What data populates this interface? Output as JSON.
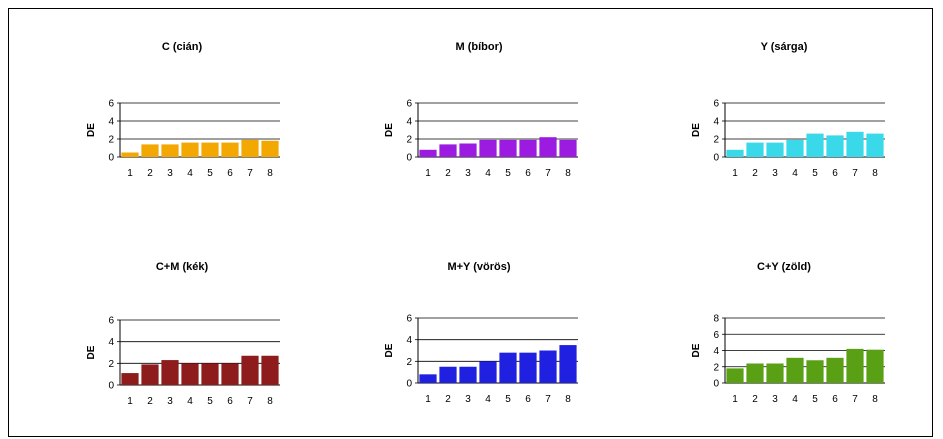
{
  "chart_data": [
    {
      "type": "bar",
      "title": "C (cián)",
      "ylabel": "DE",
      "categories": [
        "1",
        "2",
        "3",
        "4",
        "5",
        "6",
        "7",
        "8"
      ],
      "values": [
        0.5,
        1.4,
        1.4,
        1.6,
        1.6,
        1.6,
        1.9,
        1.8
      ],
      "ylim": [
        0,
        6
      ],
      "yticks": [
        "0",
        "2",
        "4",
        "6"
      ],
      "color": "#f2a800",
      "grid": true
    },
    {
      "type": "bar",
      "title": "M (bíbor)",
      "ylabel": "DE",
      "categories": [
        "1",
        "2",
        "3",
        "4",
        "5",
        "6",
        "7",
        "8"
      ],
      "values": [
        0.8,
        1.4,
        1.5,
        1.9,
        1.9,
        1.9,
        2.2,
        1.9
      ],
      "ylim": [
        0,
        6
      ],
      "yticks": [
        "0",
        "2",
        "4",
        "6"
      ],
      "color": "#9b1be0",
      "grid": true
    },
    {
      "type": "bar",
      "title": "Y (sárga)",
      "ylabel": "DE",
      "categories": [
        "1",
        "2",
        "3",
        "4",
        "5",
        "6",
        "7",
        "8"
      ],
      "values": [
        0.8,
        1.6,
        1.6,
        1.9,
        2.6,
        2.4,
        2.8,
        2.6
      ],
      "ylim": [
        0,
        6
      ],
      "yticks": [
        "0",
        "2",
        "4",
        "6"
      ],
      "color": "#3ad9ea",
      "grid": true
    },
    {
      "type": "bar",
      "title": "C+M (kék)",
      "ylabel": "DE",
      "categories": [
        "1",
        "2",
        "3",
        "4",
        "5",
        "6",
        "7",
        "8"
      ],
      "values": [
        1.1,
        1.9,
        2.3,
        2.0,
        2.0,
        2.0,
        2.7,
        2.7
      ],
      "ylim": [
        0,
        6
      ],
      "yticks": [
        "0",
        "2",
        "4",
        "6"
      ],
      "color": "#8e1c1c",
      "grid": true
    },
    {
      "type": "bar",
      "title": "M+Y (vörös)",
      "ylabel": "DE",
      "categories": [
        "1",
        "2",
        "3",
        "4",
        "5",
        "6",
        "7",
        "8"
      ],
      "values": [
        0.8,
        1.5,
        1.5,
        2.0,
        2.8,
        2.8,
        3.0,
        3.5
      ],
      "ylim": [
        0,
        6
      ],
      "yticks": [
        "0",
        "2",
        "4",
        "6"
      ],
      "color": "#2020e0",
      "grid": true
    },
    {
      "type": "bar",
      "title": "C+Y (zöld)",
      "ylabel": "DE",
      "categories": [
        "1",
        "2",
        "3",
        "4",
        "5",
        "6",
        "7",
        "8"
      ],
      "values": [
        1.8,
        2.4,
        2.4,
        3.1,
        2.8,
        3.1,
        4.2,
        4.1
      ],
      "ylim": [
        0,
        8
      ],
      "yticks": [
        "0",
        "2",
        "4",
        "6",
        "8"
      ],
      "color": "#5aa014",
      "grid": true
    }
  ]
}
